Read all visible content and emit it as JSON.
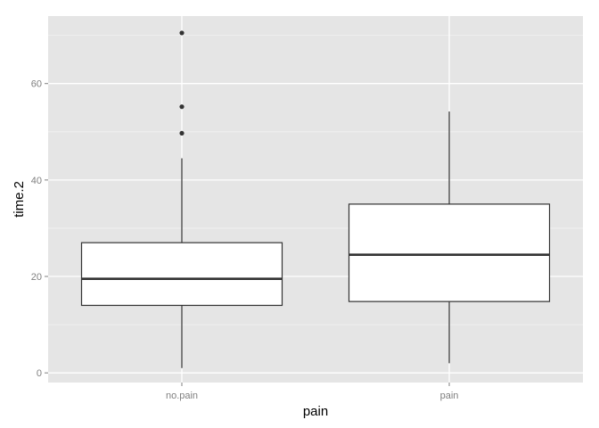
{
  "chart_data": {
    "type": "boxplot",
    "xlabel": "pain",
    "ylabel": "time.2",
    "categories": [
      "no.pain",
      "pain"
    ],
    "boxes": [
      {
        "category": "no.pain",
        "whisker_low": 1,
        "q1": 14,
        "median": 19.5,
        "q3": 27,
        "whisker_high": 44.5,
        "outliers": [
          49.7,
          55.2,
          70.5
        ]
      },
      {
        "category": "pain",
        "whisker_low": 2,
        "q1": 14.8,
        "median": 24.5,
        "q3": 35,
        "whisker_high": 54.2,
        "outliers": []
      }
    ],
    "ylim": [
      -2,
      74
    ],
    "y_ticks": [
      0,
      20,
      40,
      60
    ],
    "y_tick_labels": [
      "0",
      "20",
      "40",
      "60"
    ],
    "grid": true,
    "panel_background": "#e5e5e5",
    "grid_major_color": "#ffffff",
    "grid_minor_color": "#f2f2f2",
    "box_fill": "#ffffff",
    "line_color": "#333333"
  }
}
